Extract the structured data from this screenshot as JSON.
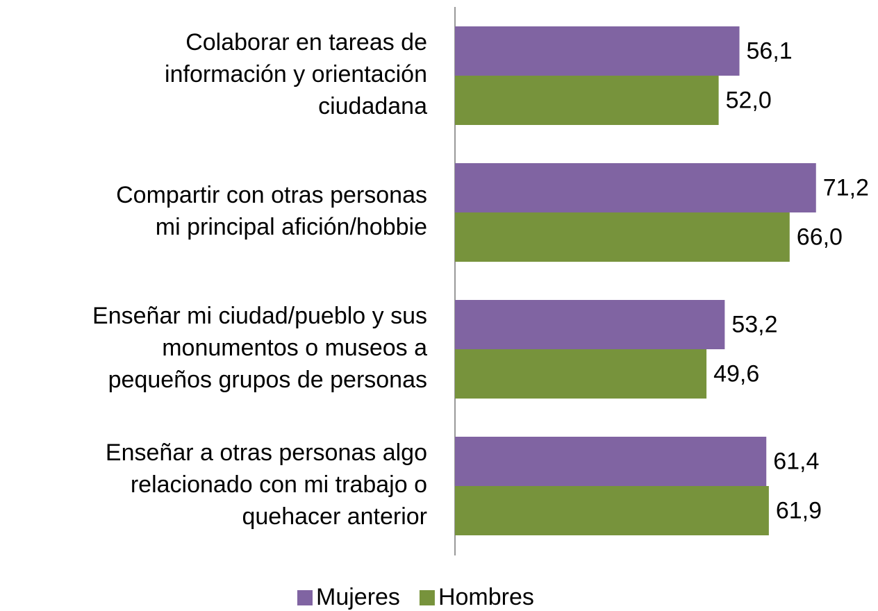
{
  "chart_data": {
    "type": "hbar",
    "categories": [
      [
        "Colaborar en tareas de",
        "información y orientación",
        "ciudadana"
      ],
      [
        "Compartir con otras personas",
        "mi principal afición/hobbie"
      ],
      [
        "Enseñar mi ciudad/pueblo y sus",
        "monumentos o museos a",
        "pequeños grupos de personas"
      ],
      [
        "Enseñar a otras personas algo",
        "relacionado con mi trabajo o",
        "quehacer anterior"
      ]
    ],
    "series": [
      {
        "name": "Mujeres",
        "color": "#8064a2",
        "values": [
          56.1,
          71.2,
          53.2,
          61.4
        ],
        "value_labels": [
          "56,1",
          "71,2",
          "53,2",
          "61,4"
        ]
      },
      {
        "name": "Hombres",
        "color": "#77933c",
        "values": [
          52.0,
          66.0,
          49.6,
          61.9
        ],
        "value_labels": [
          "52,0",
          "66,0",
          "49,6",
          "61,9"
        ]
      }
    ],
    "xlim": [
      0,
      80
    ]
  }
}
